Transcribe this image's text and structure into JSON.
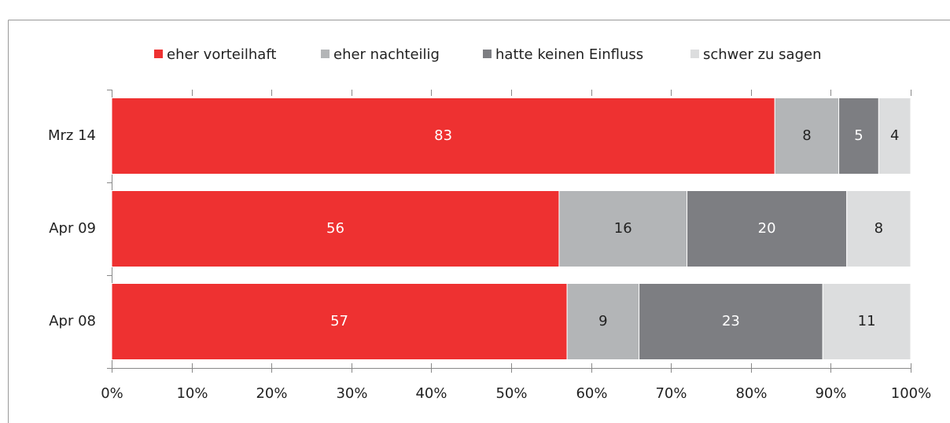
{
  "chart_data": {
    "type": "stacked_bar_horizontal",
    "categories": [
      "Mrz 14",
      "Apr 09",
      "Apr 08"
    ],
    "series": [
      {
        "name": "eher vorteilhaft",
        "color": "#ee3131",
        "values": [
          83,
          56,
          57
        ]
      },
      {
        "name": "eher nachteilig",
        "color": "#b3b5b7",
        "values": [
          8,
          16,
          9
        ]
      },
      {
        "name": "hatte keinen Einfluss",
        "color": "#7d7e82",
        "values": [
          5,
          20,
          23
        ]
      },
      {
        "name": "schwer zu sagen",
        "color": "#dcddde",
        "values": [
          4,
          8,
          11
        ]
      }
    ],
    "xlim": [
      0,
      100
    ],
    "xticks": [
      {
        "value": 0,
        "label": "0%"
      },
      {
        "value": 10,
        "label": "10%"
      },
      {
        "value": 20,
        "label": "20%"
      },
      {
        "value": 30,
        "label": "30%"
      },
      {
        "value": 40,
        "label": "40%"
      },
      {
        "value": 50,
        "label": "50%"
      },
      {
        "value": 60,
        "label": "60%"
      },
      {
        "value": 70,
        "label": "70%"
      },
      {
        "value": 80,
        "label": "80%"
      },
      {
        "value": 90,
        "label": "90%"
      },
      {
        "value": 100,
        "label": "100%"
      }
    ],
    "legend": "top"
  }
}
